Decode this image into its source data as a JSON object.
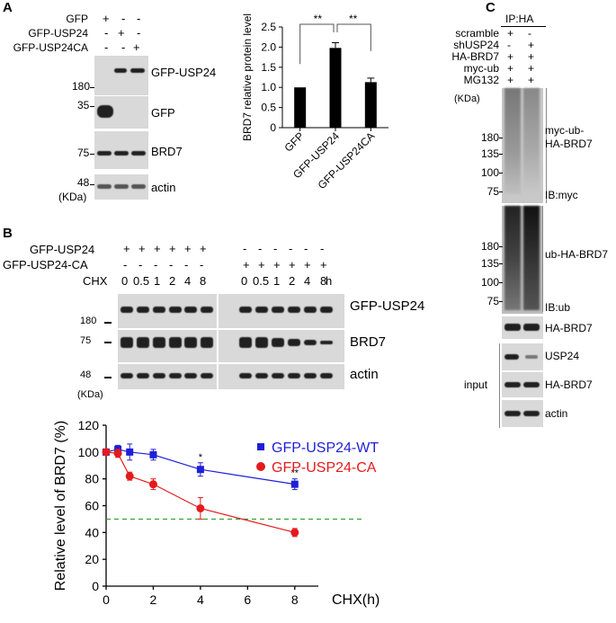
{
  "panelA": {
    "letter": "A",
    "rows": [
      {
        "name": "GFP",
        "signs": [
          "+",
          "-",
          "-"
        ]
      },
      {
        "name": "GFP-USP24",
        "signs": [
          "-",
          "+",
          "-"
        ]
      },
      {
        "name": "GFP-USP24CA",
        "signs": [
          "-",
          "-",
          "+"
        ]
      }
    ],
    "blots": [
      {
        "label": "GFP-USP24",
        "marker": "180"
      },
      {
        "label": "GFP",
        "marker": "35"
      },
      {
        "label": "BRD7",
        "marker": "75"
      },
      {
        "label": "actin",
        "marker": "48"
      }
    ],
    "unit": "(KDa)"
  },
  "chart_data": [
    {
      "type": "bar",
      "categories": [
        "GFP",
        "GFP-USP24",
        "GFP-USP24CA"
      ],
      "values": [
        1.0,
        1.98,
        1.13
      ],
      "errors": [
        0.0,
        0.13,
        0.1
      ],
      "ylabel": "BRD7 relative protein level",
      "ylim": [
        0,
        2.5
      ],
      "yticks": [
        "0",
        "0.5",
        "1.0",
        "1.5",
        "2.0",
        "2.5"
      ],
      "significance": [
        "**",
        "**"
      ],
      "bar_color": "#000000"
    },
    {
      "type": "line",
      "x": [
        0,
        0.5,
        1,
        2,
        4,
        8
      ],
      "series": [
        {
          "name": "GFP-USP24-WT",
          "values": [
            100,
            102,
            100,
            98,
            87,
            76
          ],
          "errors": [
            2,
            3,
            6,
            4,
            5,
            4
          ],
          "color": "#1f1fd6"
        },
        {
          "name": "GFP-USP24-CA",
          "values": [
            100,
            99,
            82,
            76,
            58,
            40
          ],
          "errors": [
            2,
            3,
            3,
            4,
            8,
            3
          ],
          "color": "#e41a1c"
        }
      ],
      "xlabel": "CHX(h)",
      "ylabel": "Relative level of BRD7 (%)",
      "xlim": [
        0,
        9
      ],
      "ylim": [
        0,
        120
      ],
      "xticks": [
        "0",
        "2",
        "4",
        "6",
        "8"
      ],
      "yticks": [
        "0",
        "20",
        "40",
        "60",
        "80",
        "100",
        "120"
      ],
      "reference_line": 50,
      "reference_color": "#2ca02c",
      "annotations": [
        {
          "x": 4,
          "text": "*"
        },
        {
          "x": 8,
          "text": "**"
        }
      ]
    }
  ],
  "panelB": {
    "letter": "B",
    "row1": {
      "name": "GFP-USP24",
      "signs": [
        "+",
        "+",
        "+",
        "+",
        "+",
        "+",
        "-",
        "-",
        "-",
        "-",
        "-",
        "-"
      ]
    },
    "row2": {
      "name": "GFP-USP24-CA",
      "signs": [
        "-",
        "-",
        "-",
        "-",
        "-",
        "-",
        "+",
        "+",
        "+",
        "+",
        "+",
        "+"
      ]
    },
    "chx_label": "CHX",
    "chx_values": [
      "0",
      "0.5",
      "1",
      "2",
      "4",
      "8",
      "0",
      "0.5",
      "1",
      "2",
      "4",
      "8"
    ],
    "chx_unit": "h",
    "blots": [
      {
        "label": "GFP-USP24",
        "marker": "180"
      },
      {
        "label": "BRD7",
        "marker": "75"
      },
      {
        "label": "actin",
        "marker": "48"
      }
    ],
    "unit": "(KDa)"
  },
  "panelC": {
    "letter": "C",
    "header": "IP:HA",
    "rows": [
      {
        "name": "scramble",
        "signs": [
          "+",
          "-"
        ]
      },
      {
        "name": "shUSP24",
        "signs": [
          "-",
          "+"
        ]
      },
      {
        "name": "HA-BRD7",
        "signs": [
          "+",
          "+"
        ]
      },
      {
        "name": "myc-ub",
        "signs": [
          "+",
          "+"
        ]
      },
      {
        "name": "MG132",
        "signs": [
          "+",
          "+"
        ]
      }
    ],
    "unit": "(KDa)",
    "markers1": [
      "180",
      "135",
      "100",
      "75"
    ],
    "markers2": [
      "180",
      "135",
      "100",
      "75"
    ],
    "blot1_label": "myc-ub-\nHA-BRD7",
    "blot1_ib": "IB:myc",
    "blot2_label": "ub-HA-BRD7",
    "blot2_ib": "IB:ub",
    "ha_brd7_label": "HA-BRD7",
    "input_label": "input",
    "input_blots": [
      "USP24",
      "HA-BRD7",
      "actin"
    ]
  }
}
